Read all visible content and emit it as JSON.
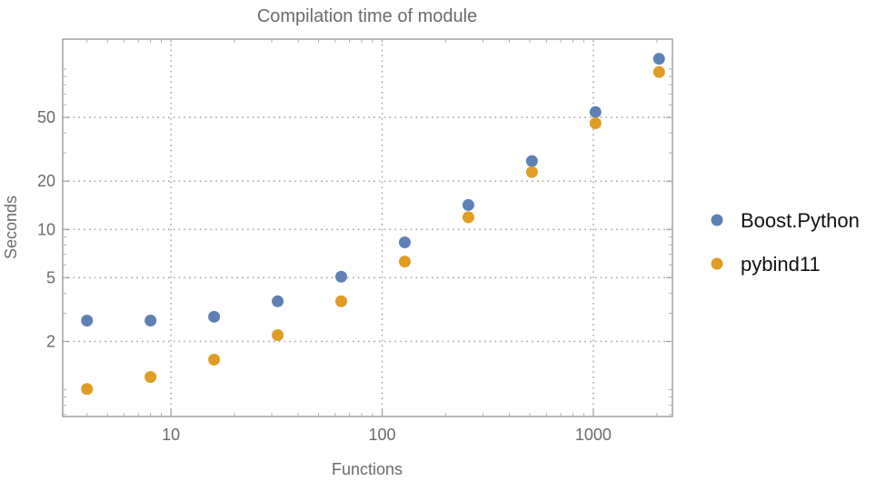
{
  "chart_data": {
    "type": "scatter",
    "title": "Compilation time of module",
    "xlabel": "Functions",
    "ylabel": "Seconds",
    "x_scale": "log",
    "y_scale": "log",
    "xlim": [
      3.07,
      2370
    ],
    "ylim": [
      0.68,
      154
    ],
    "x_ticks": [
      10,
      100,
      1000
    ],
    "x_tick_labels": [
      "10",
      "100",
      "1000"
    ],
    "y_ticks": [
      2,
      5,
      10,
      20,
      50
    ],
    "y_tick_labels": [
      "2",
      "5",
      "10",
      "20",
      "50"
    ],
    "grid": true,
    "legend_position": "right",
    "x": [
      4,
      8,
      16,
      32,
      64,
      128,
      256,
      512,
      1024,
      2048
    ],
    "series": [
      {
        "name": "Boost.Python",
        "color": "#5e81b5",
        "values": [
          2.7,
          2.7,
          2.85,
          3.56,
          5.07,
          8.3,
          14.2,
          26.7,
          54,
          116
        ]
      },
      {
        "name": "pybind11",
        "color": "#e19c24",
        "values": [
          1.01,
          1.2,
          1.54,
          2.19,
          3.56,
          6.3,
          11.9,
          22.8,
          46,
          96
        ]
      }
    ]
  }
}
